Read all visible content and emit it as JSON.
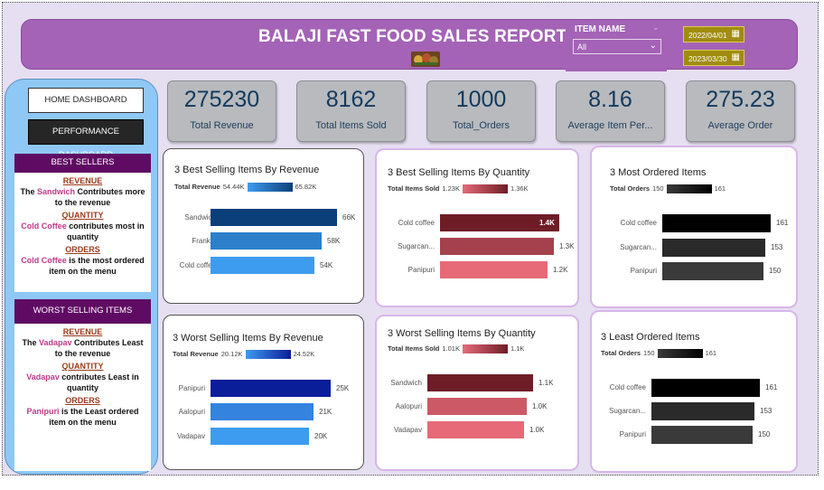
{
  "header": {
    "title": "BALAJI FAST FOOD SALES REPORT",
    "item_name_label": "ITEM NAME",
    "item_select_value": "All",
    "date_start": "2022/04/01",
    "date_end": "2023/03/30"
  },
  "nav": {
    "home_label": "HOME DASHBOARD",
    "performance_label": "PERFORMANCE DASHBOARD"
  },
  "best": {
    "heading": "BEST SELLERS",
    "revenue_sub": "REVENUE",
    "revenue_pre": "The ",
    "revenue_item": "Sandwich",
    "revenue_post": " Contributes more to the revenue",
    "quantity_sub": "QUANTITY",
    "quantity_item": "Cold Coffee",
    "quantity_post": " contributes most in quantity",
    "orders_sub": "ORDERS",
    "orders_item": "Cold Coffee",
    "orders_post": " is the most ordered item on the menu"
  },
  "worst": {
    "heading": "WORST SELLING ITEMS",
    "revenue_sub": "REVENUE",
    "revenue_pre": "The ",
    "revenue_item": "Vadapav",
    "revenue_post": " Contributes Least to the revenue",
    "quantity_sub": "QUANTITY",
    "quantity_item": "Vadapav",
    "quantity_post": " contributes Least in quantity",
    "orders_sub": "ORDERS",
    "orders_item": "Panipuri",
    "orders_post": " is the Least ordered item on the menu"
  },
  "kpis": [
    {
      "value": "275230",
      "label": "Total Revenue"
    },
    {
      "value": "8162",
      "label": "Total Items Sold"
    },
    {
      "value": "1000",
      "label": "Total_Orders"
    },
    {
      "value": "8.16",
      "label": "Average Item Per..."
    },
    {
      "value": "275.23",
      "label": "Average Order"
    }
  ],
  "chart_data": [
    {
      "type": "bar",
      "orientation": "horizontal",
      "title": "3 Best Selling Items By Revenue",
      "legend_title": "Total Revenue",
      "legend_min": "54.44K",
      "legend_max": "65.82K",
      "color_min": "#3d9cf0",
      "color_max": "#0b3f7a",
      "categories": [
        "Sandwich",
        "Frankie",
        "Cold coffee"
      ],
      "values": [
        65820,
        58000,
        54440
      ],
      "value_labels": [
        "66K",
        "58K",
        "54K"
      ],
      "xlim": [
        0,
        66000
      ]
    },
    {
      "type": "bar",
      "orientation": "horizontal",
      "title": "3 Best Selling Items By Quantity",
      "legend_title": "Total Items Sold",
      "legend_min": "1.23K",
      "legend_max": "1.36K",
      "color_min": "#e66a78",
      "color_max": "#6e1d27",
      "categories": [
        "Cold coffee",
        "Sugarcan...",
        "Panipuri"
      ],
      "values": [
        1360,
        1300,
        1230
      ],
      "value_labels": [
        "1.4K",
        "1.3K",
        "1.2K"
      ],
      "xlim": [
        0,
        1360
      ]
    },
    {
      "type": "bar",
      "orientation": "horizontal",
      "title": "3 Most Ordered Items",
      "legend_title": "Total Orders",
      "legend_min": "150",
      "legend_max": "161",
      "color_min": "#3a3a3a",
      "color_max": "#000000",
      "categories": [
        "Cold coffee",
        "Sugarcan...",
        "Panipuri"
      ],
      "values": [
        161,
        153,
        150
      ],
      "value_labels": [
        "161",
        "153",
        "150"
      ],
      "xlim": [
        0,
        161
      ]
    },
    {
      "type": "bar",
      "orientation": "horizontal",
      "title": "3 Worst Selling Items By Revenue",
      "legend_title": "Total Revenue",
      "legend_min": "20.12K",
      "legend_max": "24.52K",
      "color_min": "#3d9cf0",
      "color_max": "#0a1e9a",
      "categories": [
        "Panipuri",
        "Aalopuri",
        "Vadapav"
      ],
      "values": [
        24520,
        21000,
        20120
      ],
      "value_labels": [
        "25K",
        "21K",
        "20K"
      ],
      "xlim": [
        0,
        24520
      ]
    },
    {
      "type": "bar",
      "orientation": "horizontal",
      "title": "3 Worst Selling Items By Quantity",
      "legend_title": "Total Items Sold",
      "legend_min": "1.01K",
      "legend_max": "1.1K",
      "color_min": "#e66a78",
      "color_max": "#6e1d27",
      "categories": [
        "Sandwich",
        "Aalopuri",
        "Vadapav"
      ],
      "values": [
        1100,
        1030,
        1010
      ],
      "value_labels": [
        "1.1K",
        "1.0K",
        "1.0K"
      ],
      "xlim": [
        0,
        1100
      ]
    },
    {
      "type": "bar",
      "orientation": "horizontal",
      "title": "3 Least Ordered Items",
      "legend_title": "Total Orders",
      "legend_min": "150",
      "legend_max": "161",
      "color_min": "#3a3a3a",
      "color_max": "#000000",
      "categories": [
        "Cold coffee",
        "Sugarcan...",
        "Panipuri"
      ],
      "values": [
        161,
        153,
        150
      ],
      "value_labels": [
        "161",
        "153",
        "150"
      ],
      "xlim": [
        0,
        161
      ]
    }
  ]
}
